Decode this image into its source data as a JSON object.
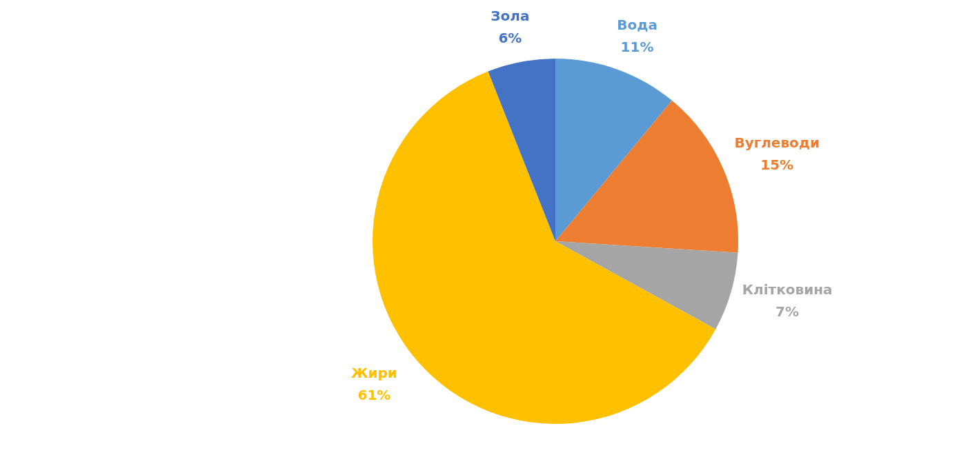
{
  "chart_data": {
    "type": "pie",
    "categories": [
      "Вода",
      "Вуглеводи",
      "Клітковина",
      "Жири",
      "Зола"
    ],
    "values": [
      11,
      15,
      7,
      61,
      6
    ],
    "colors": [
      "#5b9bd5",
      "#ed7d31",
      "#a5a5a5",
      "#ffc000",
      "#4472c4"
    ],
    "value_labels": [
      "11%",
      "15%",
      "7%",
      "61%",
      "6%"
    ],
    "legend": false
  }
}
